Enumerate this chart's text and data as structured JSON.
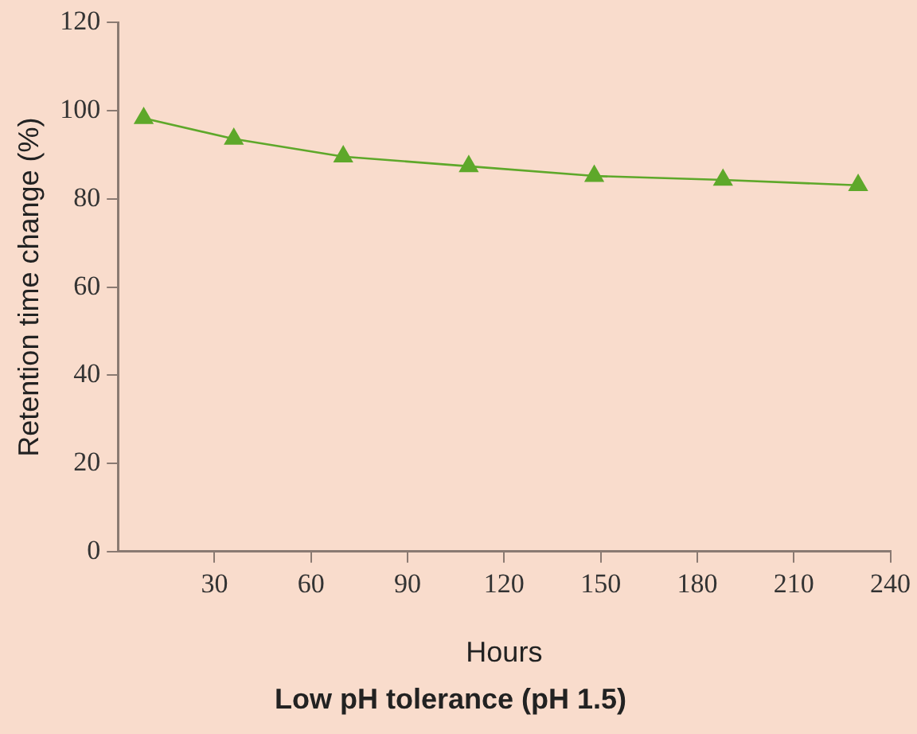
{
  "chart_data": {
    "type": "line",
    "title": "Low pH tolerance (pH 1.5)",
    "xlabel": "Hours",
    "ylabel": "Retention time change (%)",
    "x": [
      8,
      36,
      70,
      109,
      148,
      188,
      230
    ],
    "series": [
      {
        "color": "#5ea82a",
        "values": [
          98.3,
          93.6,
          89.6,
          87.4,
          85.2,
          84.3,
          83.1
        ]
      }
    ],
    "xlim": [
      0,
      240
    ],
    "xticks": [
      30,
      60,
      90,
      120,
      150,
      180,
      210,
      240
    ],
    "ylim": [
      0,
      120
    ],
    "yticks": [
      0,
      20,
      40,
      60,
      80,
      100,
      120
    ],
    "grid": false,
    "legend": false,
    "marker": "triangle",
    "line_style": "solid"
  }
}
